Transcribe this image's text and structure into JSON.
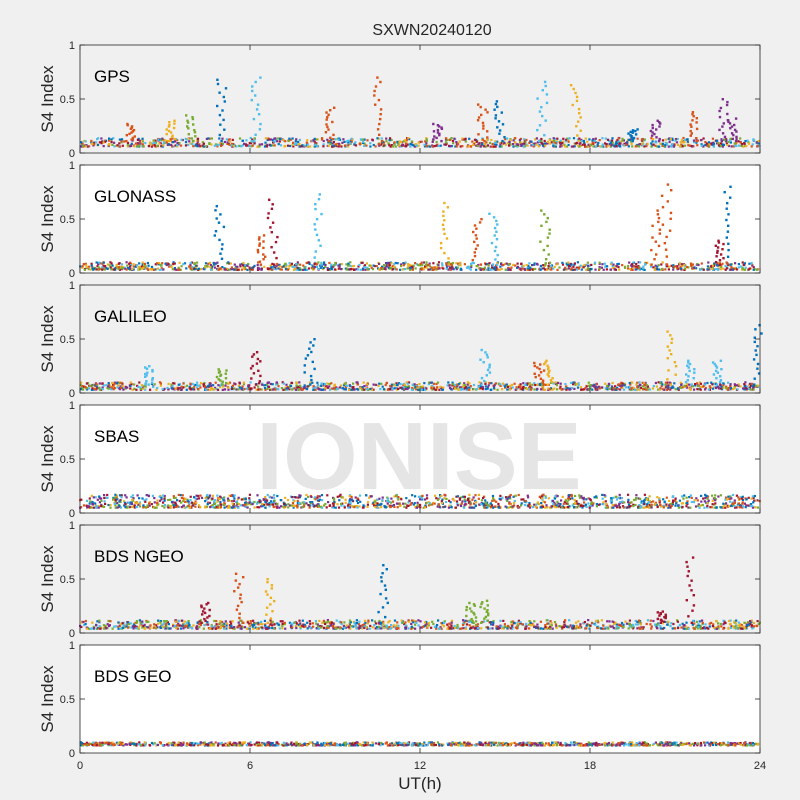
{
  "title": "SXWN20240120",
  "watermark": "IONISE",
  "xlabel": "UT(h)",
  "ylabel": "S4 Index",
  "xlim": [
    0,
    24
  ],
  "ylim": [
    0,
    1
  ],
  "x_ticks": [
    "0",
    "6",
    "12",
    "18",
    "24"
  ],
  "y_ticks": [
    "0",
    "0.5",
    "1"
  ],
  "colors": {
    "figure_background": "#f0f0f0",
    "axes_background_shaded": "#f0f0f0",
    "axes_background_plain": "#ffffff",
    "series": [
      "#0072BD",
      "#D95319",
      "#EDB120",
      "#7E2F8E",
      "#77AC30",
      "#4DBEEE",
      "#A2142F"
    ]
  },
  "chart_data": [
    {
      "type": "scatter",
      "panel_label": "GPS",
      "background": "shaded",
      "baseline": [
        0.06,
        0.14
      ],
      "peaks": [
        {
          "x": 1.8,
          "y": 0.27,
          "series": 1
        },
        {
          "x": 3.2,
          "y": 0.3,
          "series": 2
        },
        {
          "x": 3.9,
          "y": 0.35,
          "series": 4
        },
        {
          "x": 5.0,
          "y": 0.68,
          "series": 0
        },
        {
          "x": 6.2,
          "y": 0.7,
          "series": 5
        },
        {
          "x": 8.8,
          "y": 0.42,
          "series": 1
        },
        {
          "x": 10.5,
          "y": 0.7,
          "series": 1
        },
        {
          "x": 12.6,
          "y": 0.27,
          "series": 3
        },
        {
          "x": 14.2,
          "y": 0.45,
          "series": 1
        },
        {
          "x": 14.8,
          "y": 0.48,
          "series": 0
        },
        {
          "x": 16.3,
          "y": 0.66,
          "series": 5
        },
        {
          "x": 17.5,
          "y": 0.63,
          "series": 2
        },
        {
          "x": 19.5,
          "y": 0.22,
          "series": 0
        },
        {
          "x": 20.3,
          "y": 0.3,
          "series": 3
        },
        {
          "x": 21.7,
          "y": 0.38,
          "series": 1
        },
        {
          "x": 23.0,
          "y": 0.32,
          "series": 3
        },
        {
          "x": 22.7,
          "y": 0.5,
          "series": 3
        }
      ]
    },
    {
      "type": "scatter",
      "panel_label": "GLONASS",
      "background": "plain",
      "baseline": [
        0.03,
        0.1
      ],
      "peaks": [
        {
          "x": 4.9,
          "y": 0.62,
          "series": 0
        },
        {
          "x": 6.8,
          "y": 0.68,
          "series": 6
        },
        {
          "x": 6.4,
          "y": 0.35,
          "series": 1
        },
        {
          "x": 8.4,
          "y": 0.73,
          "series": 5
        },
        {
          "x": 12.9,
          "y": 0.65,
          "series": 2
        },
        {
          "x": 14.0,
          "y": 0.5,
          "series": 1
        },
        {
          "x": 14.6,
          "y": 0.55,
          "series": 5
        },
        {
          "x": 16.4,
          "y": 0.58,
          "series": 4
        },
        {
          "x": 20.7,
          "y": 0.82,
          "series": 1
        },
        {
          "x": 20.3,
          "y": 0.58,
          "series": 1
        },
        {
          "x": 22.9,
          "y": 0.8,
          "series": 0
        },
        {
          "x": 22.6,
          "y": 0.3,
          "series": 6
        }
      ]
    },
    {
      "type": "scatter",
      "panel_label": "GALILEO",
      "background": "shaded",
      "baseline": [
        0.03,
        0.1
      ],
      "peaks": [
        {
          "x": 2.4,
          "y": 0.25,
          "series": 5
        },
        {
          "x": 5.0,
          "y": 0.22,
          "series": 4
        },
        {
          "x": 6.2,
          "y": 0.38,
          "series": 6
        },
        {
          "x": 8.1,
          "y": 0.5,
          "series": 0
        },
        {
          "x": 14.3,
          "y": 0.4,
          "series": 5
        },
        {
          "x": 16.5,
          "y": 0.3,
          "series": 2
        },
        {
          "x": 16.2,
          "y": 0.28,
          "series": 1
        },
        {
          "x": 20.9,
          "y": 0.57,
          "series": 2
        },
        {
          "x": 21.5,
          "y": 0.3,
          "series": 5
        },
        {
          "x": 22.5,
          "y": 0.3,
          "series": 5
        },
        {
          "x": 23.9,
          "y": 0.63,
          "series": 0
        }
      ]
    },
    {
      "type": "scatter",
      "panel_label": "SBAS",
      "background": "plain",
      "baseline": [
        0.05,
        0.17
      ],
      "peaks": []
    },
    {
      "type": "scatter",
      "panel_label": "BDS NGEO",
      "background": "shaded",
      "baseline": [
        0.04,
        0.12
      ],
      "peaks": [
        {
          "x": 4.4,
          "y": 0.28,
          "series": 6
        },
        {
          "x": 5.6,
          "y": 0.55,
          "series": 1
        },
        {
          "x": 6.7,
          "y": 0.5,
          "series": 2
        },
        {
          "x": 10.7,
          "y": 0.63,
          "series": 0
        },
        {
          "x": 13.8,
          "y": 0.28,
          "series": 4
        },
        {
          "x": 14.3,
          "y": 0.3,
          "series": 4
        },
        {
          "x": 20.5,
          "y": 0.2,
          "series": 6
        },
        {
          "x": 21.5,
          "y": 0.7,
          "series": 6
        }
      ]
    },
    {
      "type": "scatter",
      "panel_label": "BDS GEO",
      "background": "plain",
      "baseline": [
        0.07,
        0.1
      ],
      "peaks": []
    }
  ]
}
